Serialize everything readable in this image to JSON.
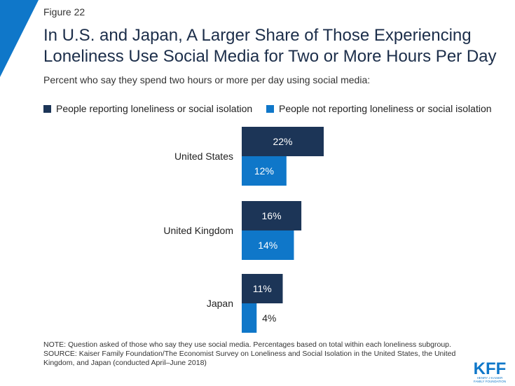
{
  "figure_label": "Figure 22",
  "chart_data": {
    "type": "bar",
    "orientation": "horizontal",
    "title": "In U.S. and Japan, A Larger Share of Those Experiencing Loneliness Use Social Media for Two or More Hours Per Day",
    "subtitle": "Percent who say they spend two hours or more per day using social media:",
    "categories": [
      "United States",
      "United Kingdom",
      "Japan"
    ],
    "series": [
      {
        "name": "People reporting loneliness or social isolation",
        "values": [
          22,
          16,
          11
        ],
        "labels": [
          "22%",
          "16%",
          "11%"
        ],
        "color": "#1c3557"
      },
      {
        "name": "People not reporting loneliness or social isolation",
        "values": [
          12,
          14,
          4
        ],
        "labels": [
          "12%",
          "14%",
          "4%"
        ],
        "color": "#0f77c9"
      }
    ],
    "xlim": [
      0,
      22
    ],
    "legend": "top",
    "grid": false
  },
  "notes": {
    "note": "NOTE: Question asked of those who say they use social media. Percentages based on total within each loneliness subgroup.",
    "source": "SOURCE: Kaiser Family Foundation/The Economist Survey on Loneliness and Social Isolation in the United States, the United Kingdom, and Japan (conducted April–June 2018)"
  },
  "logo": {
    "text": "KFF",
    "subtext_line1": "HENRY J KAISER",
    "subtext_line2": "FAMILY FOUNDATION",
    "color": "#0f77c9"
  },
  "colors": {
    "accent": "#0f77c9",
    "dark": "#1c3557",
    "title": "#1c2e4a"
  }
}
